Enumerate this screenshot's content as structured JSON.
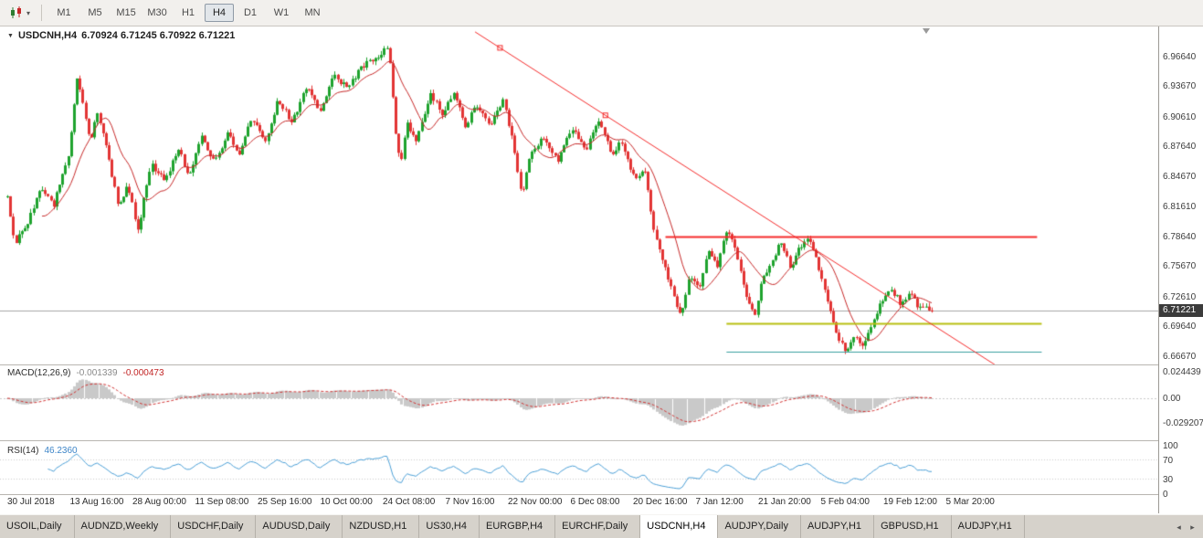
{
  "toolbar": {
    "chart_type_caret": "▾",
    "timeframes": [
      {
        "label": "M1",
        "active": false
      },
      {
        "label": "M5",
        "active": false
      },
      {
        "label": "M15",
        "active": false
      },
      {
        "label": "M30",
        "active": false
      },
      {
        "label": "H1",
        "active": false
      },
      {
        "label": "H4",
        "active": true
      },
      {
        "label": "D1",
        "active": false
      },
      {
        "label": "W1",
        "active": false
      },
      {
        "label": "MN",
        "active": false
      }
    ]
  },
  "chart": {
    "collapse_icon": "▼",
    "symbol": "USDCNH,H4",
    "ohlc": "6.70924 6.71245 6.70922 6.71221",
    "current_price": "6.71221",
    "price_axis_labels": [
      "6.96640",
      "6.93670",
      "6.90610",
      "6.87640",
      "6.84670",
      "6.81610",
      "6.78640",
      "6.75670",
      "6.72610",
      "6.69640",
      "6.66670"
    ]
  },
  "macd_panel": {
    "label": "MACD(12,26,9)",
    "value_main": "-0.001339",
    "value_signal": "-0.000473",
    "scale_top": "0.024439",
    "scale_zero": "0.00",
    "scale_bottom": "-0.029207"
  },
  "rsi_panel": {
    "label": "RSI(14)",
    "value": "46.2360",
    "scale": [
      "100",
      "70",
      "30",
      "0"
    ],
    "levels": [
      70,
      30
    ]
  },
  "time_axis": {
    "labels": [
      "30 Jul 2018",
      "13 Aug 16:00",
      "28 Aug 00:00",
      "11 Sep 08:00",
      "25 Sep 16:00",
      "10 Oct 00:00",
      "24 Oct 08:00",
      "7 Nov 16:00",
      "22 Nov 00:00",
      "6 Dec 08:00",
      "20 Dec 16:00",
      "7 Jan 12:00",
      "21 Jan 20:00",
      "5 Feb 04:00",
      "19 Feb 12:00",
      "5 Mar 20:00"
    ]
  },
  "tabs": {
    "items": [
      {
        "label": "USOIL,Daily",
        "active": false
      },
      {
        "label": "AUDNZD,Weekly",
        "active": false
      },
      {
        "label": "USDCHF,Daily",
        "active": false
      },
      {
        "label": "AUDUSD,Daily",
        "active": false
      },
      {
        "label": "NZDUSD,H1",
        "active": false
      },
      {
        "label": "US30,H4",
        "active": false
      },
      {
        "label": "EURGBP,H4",
        "active": false
      },
      {
        "label": "EURCHF,Daily",
        "active": false
      },
      {
        "label": "USDCNH,H4",
        "active": true
      },
      {
        "label": "AUDJPY,Daily",
        "active": false
      },
      {
        "label": "AUDJPY,H1",
        "active": false
      },
      {
        "label": "GBPUSD,H1",
        "active": false
      },
      {
        "label": "AUDJPY,H1",
        "active": false
      }
    ],
    "scroll_left": "◂",
    "scroll_right": "▸"
  },
  "chart_data": {
    "type": "candlestick",
    "symbol": "USDCNH",
    "timeframe": "H4",
    "candle_count": 320,
    "last_close": 6.71221,
    "price_top": 6.9973,
    "price_bottom": 6.6594,
    "price_path": [
      [
        0.0,
        6.826
      ],
      [
        0.008,
        6.78
      ],
      [
        0.022,
        6.8
      ],
      [
        0.037,
        6.836
      ],
      [
        0.05,
        6.818
      ],
      [
        0.066,
        6.868
      ],
      [
        0.076,
        6.948
      ],
      [
        0.082,
        6.915
      ],
      [
        0.09,
        6.88
      ],
      [
        0.096,
        6.914
      ],
      [
        0.105,
        6.885
      ],
      [
        0.12,
        6.815
      ],
      [
        0.13,
        6.838
      ],
      [
        0.141,
        6.792
      ],
      [
        0.155,
        6.86
      ],
      [
        0.17,
        6.842
      ],
      [
        0.185,
        6.874
      ],
      [
        0.196,
        6.846
      ],
      [
        0.21,
        6.886
      ],
      [
        0.224,
        6.86
      ],
      [
        0.239,
        6.892
      ],
      [
        0.25,
        6.866
      ],
      [
        0.264,
        6.905
      ],
      [
        0.279,
        6.88
      ],
      [
        0.293,
        6.924
      ],
      [
        0.308,
        6.9
      ],
      [
        0.323,
        6.936
      ],
      [
        0.338,
        6.912
      ],
      [
        0.353,
        6.948
      ],
      [
        0.368,
        6.934
      ],
      [
        0.382,
        6.956
      ],
      [
        0.397,
        6.964
      ],
      [
        0.412,
        6.976
      ],
      [
        0.42,
        6.892
      ],
      [
        0.425,
        6.858
      ],
      [
        0.432,
        6.9
      ],
      [
        0.443,
        6.882
      ],
      [
        0.457,
        6.93
      ],
      [
        0.471,
        6.908
      ],
      [
        0.482,
        6.93
      ],
      [
        0.496,
        6.896
      ],
      [
        0.506,
        6.92
      ],
      [
        0.521,
        6.896
      ],
      [
        0.536,
        6.924
      ],
      [
        0.546,
        6.884
      ],
      [
        0.556,
        6.826
      ],
      [
        0.565,
        6.87
      ],
      [
        0.58,
        6.886
      ],
      [
        0.595,
        6.862
      ],
      [
        0.61,
        6.896
      ],
      [
        0.625,
        6.872
      ],
      [
        0.64,
        6.902
      ],
      [
        0.654,
        6.866
      ],
      [
        0.664,
        6.882
      ],
      [
        0.679,
        6.842
      ],
      [
        0.689,
        6.856
      ],
      [
        0.699,
        6.792
      ],
      [
        0.709,
        6.762
      ],
      [
        0.719,
        6.732
      ],
      [
        0.728,
        6.706
      ],
      [
        0.738,
        6.748
      ],
      [
        0.748,
        6.732
      ],
      [
        0.758,
        6.772
      ],
      [
        0.768,
        6.756
      ],
      [
        0.778,
        6.794
      ],
      [
        0.788,
        6.772
      ],
      [
        0.798,
        6.732
      ],
      [
        0.808,
        6.706
      ],
      [
        0.817,
        6.746
      ],
      [
        0.827,
        6.762
      ],
      [
        0.837,
        6.782
      ],
      [
        0.847,
        6.756
      ],
      [
        0.857,
        6.776
      ],
      [
        0.867,
        6.788
      ],
      [
        0.877,
        6.756
      ],
      [
        0.887,
        6.722
      ],
      [
        0.896,
        6.692
      ],
      [
        0.906,
        6.672
      ],
      [
        0.916,
        6.686
      ],
      [
        0.926,
        6.676
      ],
      [
        0.936,
        6.702
      ],
      [
        0.946,
        6.722
      ],
      [
        0.956,
        6.734
      ],
      [
        0.966,
        6.72
      ],
      [
        0.976,
        6.73
      ],
      [
        0.986,
        6.716
      ],
      [
        1.0,
        6.712
      ]
    ],
    "overlays": {
      "trendline": {
        "t1": 0.506,
        "p1": 6.991,
        "t2": 1.089,
        "p2": 6.646,
        "handles": [
          0.533,
          0.647
        ]
      },
      "hlines": [
        {
          "name": "resistance-red",
          "price": 6.7864,
          "t1": 0.712,
          "t2": 1.114,
          "width": 2,
          "color_key": "hline_resistance"
        },
        {
          "name": "support-olive",
          "price": 6.6995,
          "t1": 0.778,
          "t2": 1.119,
          "width": 2,
          "color_key": "hline_support"
        },
        {
          "name": "support-teal",
          "price": 6.671,
          "t1": 0.778,
          "t2": 1.119,
          "width": 1,
          "color_key": "hline_lower"
        }
      ]
    },
    "indicators": {
      "macd": {
        "fast": 12,
        "slow": 26,
        "signal": 9
      },
      "rsi": {
        "period": 14
      },
      "ma": {
        "period": 13
      }
    }
  },
  "colors": {
    "candle_up": "#1fa32e",
    "candle_down": "#e23434",
    "ma": "#c62828",
    "trendline": "#f42b2b",
    "hline_resistance": "#f42b2b",
    "hline_support": "#b8bf12",
    "hline_lower": "#3b9ea0",
    "current_price_line": "#a6a6a6",
    "macd_hist": "#c9c9c9",
    "macd_signal": "#d03030",
    "rsi": "#4b9fd6",
    "badge_bg": "#3b3b3b"
  }
}
